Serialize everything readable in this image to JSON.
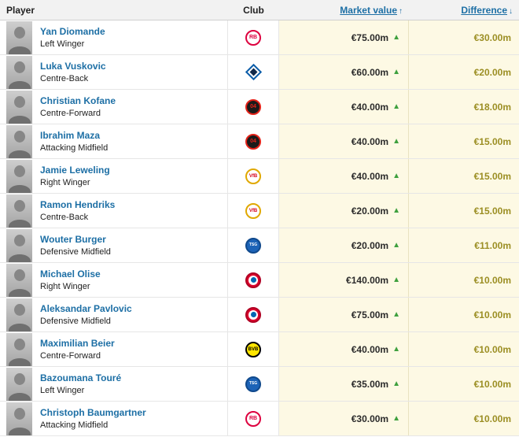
{
  "colors": {
    "link_blue": "#1d6fa5",
    "value_column_bg": "#fdf9e4",
    "increase_green": "#3ea03e",
    "difference_text": "#9b8e23",
    "header_bg": "#f2f2f2"
  },
  "table": {
    "header": {
      "player_label": "Player",
      "club_label": "Club",
      "market_value_label": "Market value",
      "market_value_sort_icon": "↑",
      "difference_label": "Difference",
      "difference_sort_icon": "↓"
    },
    "icons": {
      "increase_arrow": "▲"
    },
    "rows": [
      {
        "player": "Yan Diomande",
        "position": "Left Winger",
        "club": "RB Leipzig",
        "logo": "rb_leipzig",
        "market_value": "€75.00m",
        "difference": "€30.00m"
      },
      {
        "player": "Luka Vuskovic",
        "position": "Centre-Back",
        "club": "Hamburger SV",
        "logo": "hamburger_sv",
        "market_value": "€60.00m",
        "difference": "€20.00m"
      },
      {
        "player": "Christian Kofane",
        "position": "Centre-Forward",
        "club": "Bayer Leverkusen",
        "logo": "bayer_leverkusen",
        "market_value": "€40.00m",
        "difference": "€18.00m"
      },
      {
        "player": "Ibrahim Maza",
        "position": "Attacking Midfield",
        "club": "Bayer Leverkusen",
        "logo": "bayer_leverkusen",
        "market_value": "€40.00m",
        "difference": "€15.00m"
      },
      {
        "player": "Jamie Leweling",
        "position": "Right Winger",
        "club": "VfB Stuttgart",
        "logo": "vfb_stuttgart",
        "market_value": "€40.00m",
        "difference": "€15.00m"
      },
      {
        "player": "Ramon Hendriks",
        "position": "Centre-Back",
        "club": "VfB Stuttgart",
        "logo": "vfb_stuttgart",
        "market_value": "€20.00m",
        "difference": "€15.00m"
      },
      {
        "player": "Wouter Burger",
        "position": "Defensive Midfield",
        "club": "TSG Hoffenheim",
        "logo": "tsg_hoffenheim",
        "market_value": "€20.00m",
        "difference": "€11.00m"
      },
      {
        "player": "Michael Olise",
        "position": "Right Winger",
        "club": "Bayern Munich",
        "logo": "bayern_munich",
        "market_value": "€140.00m",
        "difference": "€10.00m"
      },
      {
        "player": "Aleksandar Pavlovic",
        "position": "Defensive Midfield",
        "club": "Bayern Munich",
        "logo": "bayern_munich",
        "market_value": "€75.00m",
        "difference": "€10.00m"
      },
      {
        "player": "Maximilian Beier",
        "position": "Centre-Forward",
        "club": "Borussia Dortmund",
        "logo": "borussia_dortmund",
        "market_value": "€40.00m",
        "difference": "€10.00m"
      },
      {
        "player": "Bazoumana Touré",
        "position": "Left Winger",
        "club": "TSG Hoffenheim",
        "logo": "tsg_hoffenheim",
        "market_value": "€35.00m",
        "difference": "€10.00m"
      },
      {
        "player": "Christoph Baumgartner",
        "position": "Attacking Midfield",
        "club": "RB Leipzig",
        "logo": "rb_leipzig",
        "market_value": "€30.00m",
        "difference": "€10.00m"
      }
    ]
  },
  "club_logos": {
    "rb_leipzig": {
      "shape": "circle",
      "bg": "#ffffff",
      "border": "#dd013f",
      "label": "RB",
      "label_color": "#dd013f",
      "label_size": 7
    },
    "hamburger_sv": {
      "shape": "diamond",
      "bg": "#ffffff",
      "border": "#0b5da9",
      "inner": "#10294a"
    },
    "bayer_leverkusen": {
      "shape": "circle",
      "bg": "#1a1a1a",
      "border": "#e32219",
      "label": "04",
      "label_color": "#e32219",
      "label_size": 7
    },
    "vfb_stuttgart": {
      "shape": "circle",
      "bg": "#ffffff",
      "border": "#e0a800",
      "label": "VfB",
      "label_color": "#d40019",
      "label_size": 6
    },
    "tsg_hoffenheim": {
      "shape": "circle",
      "bg": "#1c63b7",
      "border": "#10498c",
      "label": "TSG",
      "label_color": "#ffffff",
      "label_size": 5
    },
    "bayern_munich": {
      "shape": "circle",
      "bg": "#dc052d",
      "border": "#b00023",
      "inner": "#ffffff",
      "core": "#0066b2"
    },
    "borussia_dortmund": {
      "shape": "circle",
      "bg": "#ffe600",
      "border": "#000000",
      "label": "BVB",
      "label_color": "#000000",
      "label_size": 6
    }
  }
}
